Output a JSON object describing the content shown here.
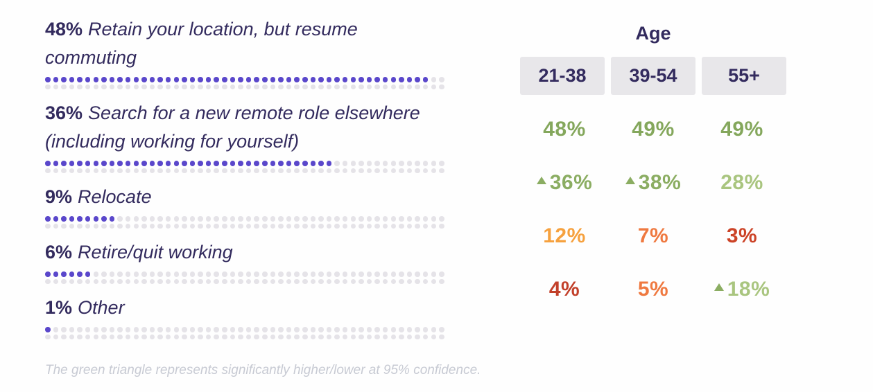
{
  "page": {
    "background": "#fefefe"
  },
  "footnote": "The green triangle represents significantly higher/lower at 95% confidence.",
  "colors": {
    "navy": "#332b5e",
    "purple": "#5a47cb",
    "dot_gray": "#e5e3e8",
    "header_gray": "#e8e7ea",
    "green": "#84a75c",
    "green_mid": "#8bad62",
    "green_light": "#a9c57f",
    "golden": "#f6a13e",
    "orange": "#ef7940",
    "red_orange": "#cc4327",
    "red": "#c2402a",
    "footnote_gray": "#c7cad3"
  },
  "chart_data": [
    {
      "type": "bar",
      "subtype": "dot-pictogram",
      "title": "",
      "xlabel": "",
      "ylabel": "",
      "unit": "%",
      "dots_total": 100,
      "dots_per_row": 50,
      "dot_rows": 2,
      "categories": [
        "Retain your location, but resume commuting",
        "Search for a new remote role elsewhere (including working for yourself)",
        "Relocate",
        "Retire/quit working",
        "Other"
      ],
      "values": [
        48,
        36,
        9,
        6,
        1
      ],
      "value_labels": [
        "48%",
        "36%",
        "9%",
        "6%",
        "1%"
      ]
    },
    {
      "type": "table",
      "title": "Age",
      "columns": [
        "21-38",
        "39-54",
        "55+"
      ],
      "rows": [
        {
          "cells": [
            {
              "text": "48%",
              "color": "#84a75c",
              "triangle": false
            },
            {
              "text": "49%",
              "color": "#84a75c",
              "triangle": false
            },
            {
              "text": "49%",
              "color": "#84a75c",
              "triangle": false
            }
          ]
        },
        {
          "cells": [
            {
              "text": "36%",
              "color": "#8bad62",
              "triangle": true,
              "triangle_color": "#8bad62"
            },
            {
              "text": "38%",
              "color": "#8bad62",
              "triangle": true,
              "triangle_color": "#8bad62"
            },
            {
              "text": "28%",
              "color": "#a9c57f",
              "triangle": false
            }
          ]
        },
        {
          "cells": [
            {
              "text": "12%",
              "color": "#f6a13e",
              "triangle": false
            },
            {
              "text": "7%",
              "color": "#ef7940",
              "triangle": false
            },
            {
              "text": "3%",
              "color": "#cc4327",
              "triangle": false
            }
          ]
        },
        {
          "cells": [
            {
              "text": "4%",
              "color": "#c2402a",
              "triangle": false
            },
            {
              "text": "5%",
              "color": "#ef7940",
              "triangle": false
            },
            {
              "text": "18%",
              "color": "#a9c57f",
              "triangle": true,
              "triangle_color": "#8bad62"
            }
          ]
        }
      ]
    }
  ]
}
